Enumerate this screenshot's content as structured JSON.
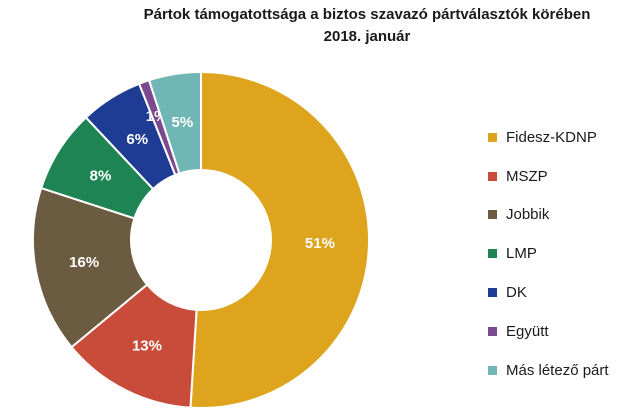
{
  "chart_data": {
    "type": "pie",
    "title": "Pártok támogatottsága a biztos szavazó pártválasztók körében",
    "subtitle": "2018. január",
    "categories": [
      "Fidesz-KDNP",
      "MSZP",
      "Jobbik",
      "LMP",
      "DK",
      "Együtt",
      "Más létező párt"
    ],
    "values": [
      51,
      13,
      16,
      8,
      6,
      1,
      5
    ],
    "labels": [
      "51%",
      "13%",
      "16%",
      "8%",
      "6%",
      "1%",
      "5%"
    ],
    "colors": [
      "#DEA41E",
      "#C94B3A",
      "#6B5B40",
      "#1F8453",
      "#1F3C94",
      "#7B4A8E",
      "#6FB6B5"
    ],
    "legend_position": "right"
  }
}
